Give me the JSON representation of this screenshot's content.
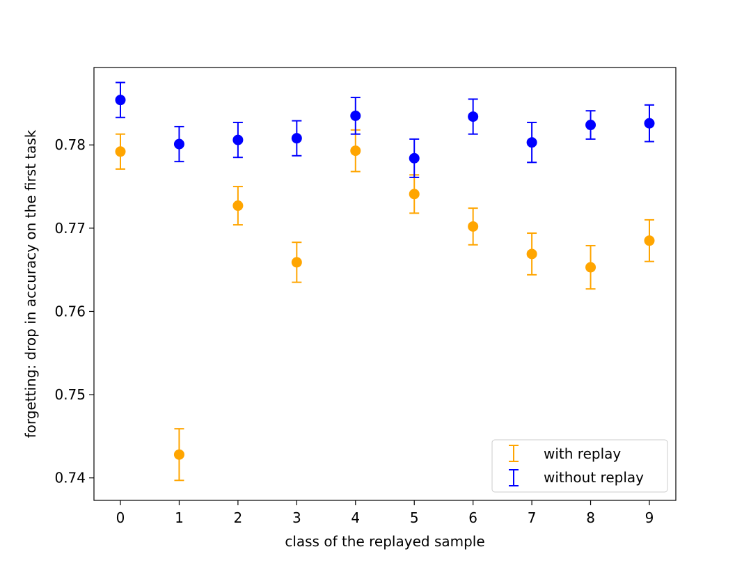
{
  "chart_data": {
    "type": "scatter",
    "title": "",
    "xlabel": "class of the replayed sample",
    "ylabel": "forgetting: drop in accuracy on the first task",
    "xlim": [
      -0.45,
      9.45
    ],
    "ylim": [
      0.7373,
      0.7893
    ],
    "x_ticks": [
      0,
      1,
      2,
      3,
      4,
      5,
      6,
      7,
      8,
      9
    ],
    "y_ticks": [
      0.74,
      0.75,
      0.76,
      0.77,
      0.78
    ],
    "y_tick_labels": [
      "0.74",
      "0.75",
      "0.76",
      "0.77",
      "0.78"
    ],
    "grid": false,
    "legend": {
      "position": "lower-right"
    },
    "series": [
      {
        "name": "with replay",
        "color": "#ffa500",
        "x": [
          0,
          1,
          2,
          3,
          4,
          5,
          6,
          7,
          8,
          9
        ],
        "y": [
          0.7792,
          0.7428,
          0.7727,
          0.7659,
          0.7793,
          0.7741,
          0.7702,
          0.7669,
          0.7653,
          0.7685
        ],
        "err": [
          0.0021,
          0.0031,
          0.0023,
          0.0024,
          0.0025,
          0.0023,
          0.0022,
          0.0025,
          0.0026,
          0.0025
        ]
      },
      {
        "name": "without replay",
        "color": "#0000ff",
        "x": [
          0,
          1,
          2,
          3,
          4,
          5,
          6,
          7,
          8,
          9
        ],
        "y": [
          0.7854,
          0.7801,
          0.7806,
          0.7808,
          0.7835,
          0.7784,
          0.7834,
          0.7803,
          0.7824,
          0.7826
        ],
        "err": [
          0.0021,
          0.0021,
          0.0021,
          0.0021,
          0.0022,
          0.0023,
          0.0021,
          0.0024,
          0.0017,
          0.0022
        ]
      }
    ]
  }
}
